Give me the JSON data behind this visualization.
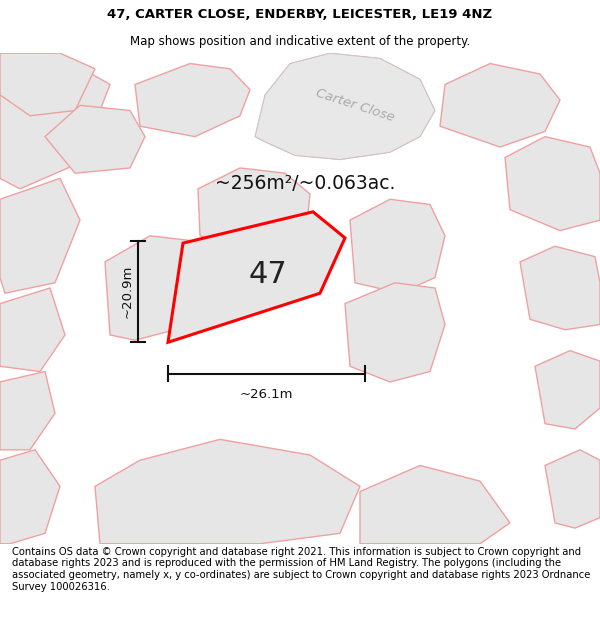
{
  "title": "47, CARTER CLOSE, ENDERBY, LEICESTER, LE19 4NZ",
  "subtitle": "Map shows position and indicative extent of the property.",
  "footer": "Contains OS data © Crown copyright and database right 2021. This information is subject to Crown copyright and database rights 2023 and is reproduced with the permission of HM Land Registry. The polygons (including the associated geometry, namely x, y co-ordinates) are subject to Crown copyright and database rights 2023 Ordnance Survey 100026316.",
  "area_text": "~256m²/~0.063ac.",
  "width_text": "~26.1m",
  "height_text": "~20.9m",
  "label_47": "47",
  "plot_color": "#ff0000",
  "map_bg": "#efefef",
  "road_label": "Carter Close",
  "title_fontsize": 9.5,
  "subtitle_fontsize": 8.5,
  "footer_fontsize": 7.2,
  "bg_poly_fill": "#e6e6e6",
  "bg_poly_edge": "#f0a0a0",
  "road_fill": "#e6e6e6",
  "road_edge": "#cccccc"
}
